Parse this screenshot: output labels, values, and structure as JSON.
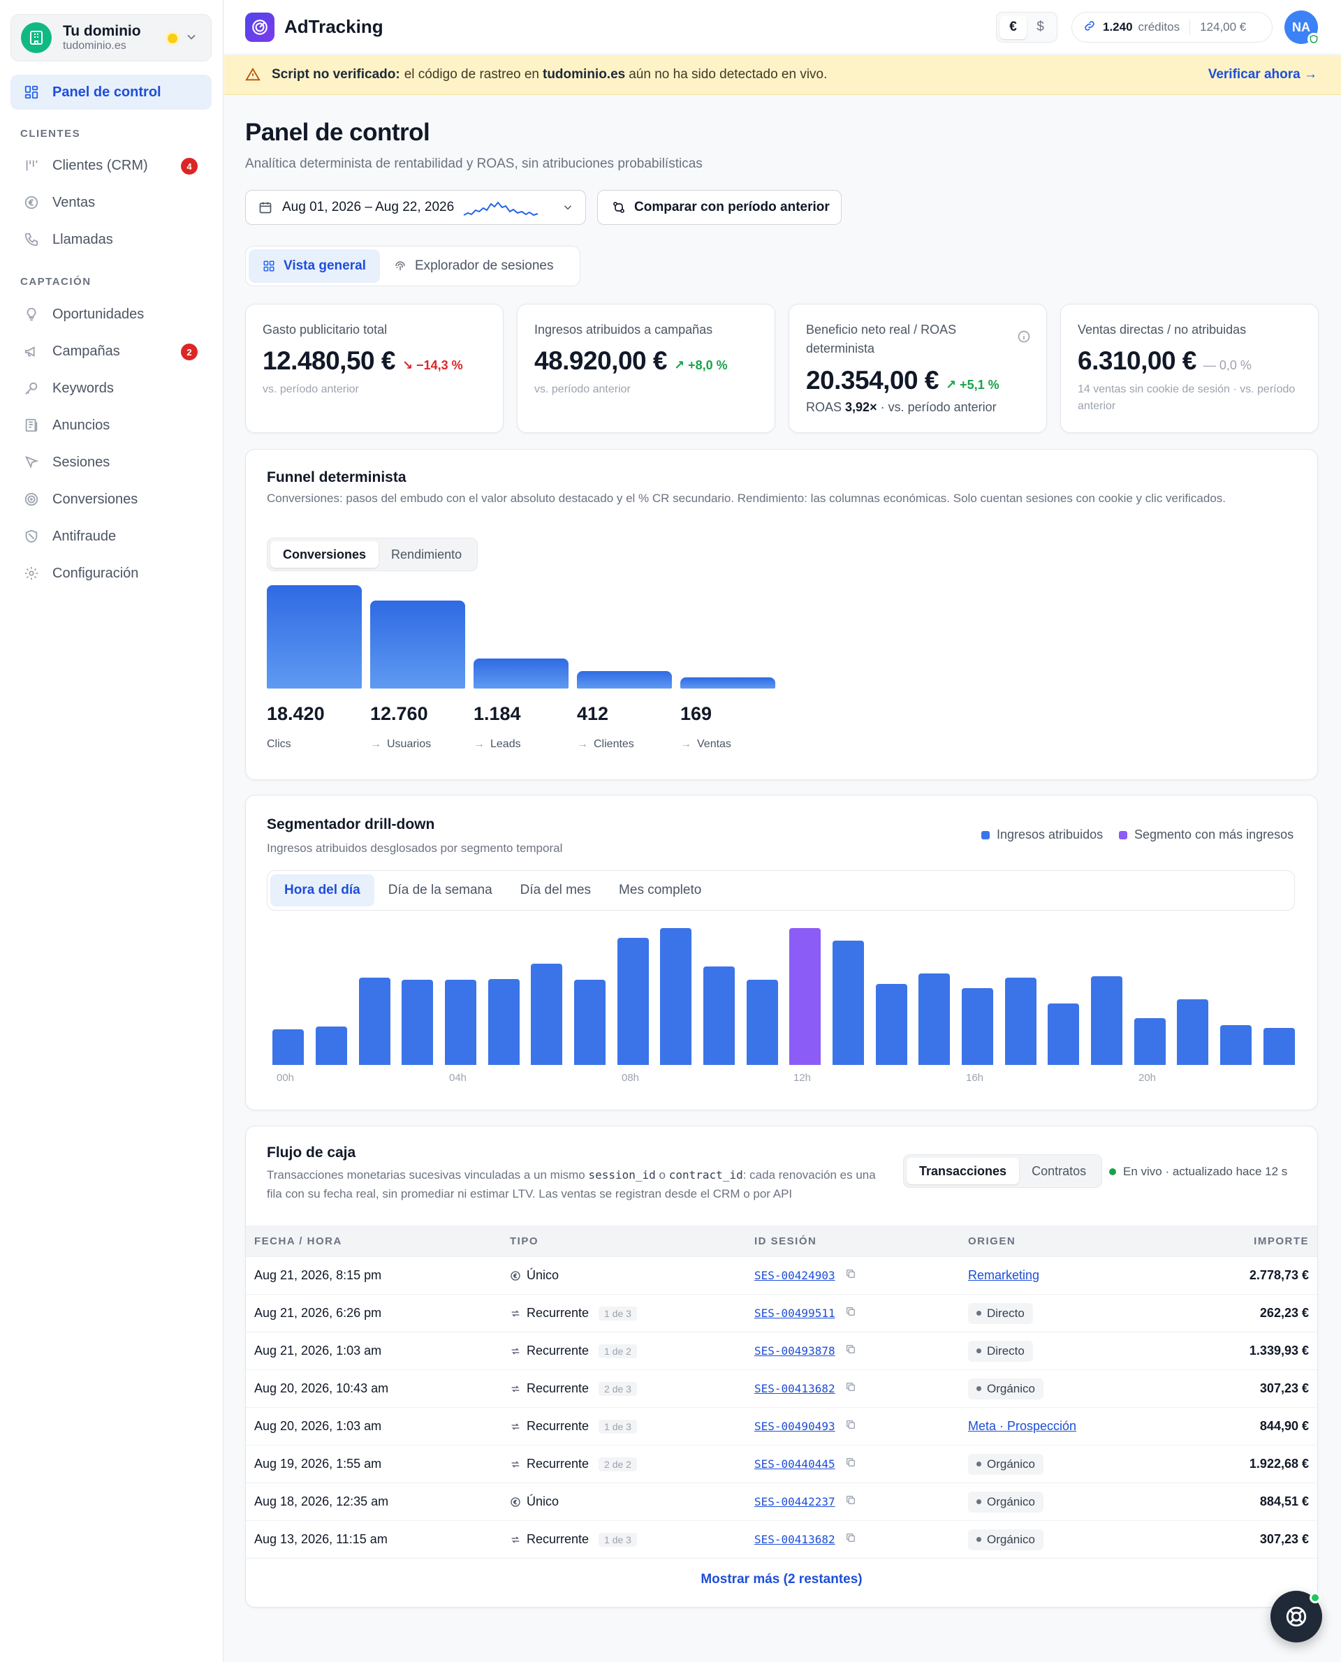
{
  "workspace": {
    "name": "Tu dominio",
    "domain": "tudominio.es"
  },
  "sidebar": {
    "items_top": [
      {
        "label": "Panel de control",
        "icon": "dashboard-icon"
      }
    ],
    "sections": [
      {
        "title": "CLIENTES",
        "items": [
          {
            "label": "Clientes (CRM)",
            "icon": "crm-icon",
            "badge": "4"
          },
          {
            "label": "Ventas",
            "icon": "euro-icon"
          },
          {
            "label": "Llamadas",
            "icon": "phone-icon"
          }
        ]
      },
      {
        "title": "CAPTACIÓN",
        "items": [
          {
            "label": "Oportunidades",
            "icon": "lightbulb-icon"
          },
          {
            "label": "Campañas",
            "icon": "megaphone-icon",
            "badge": "2"
          },
          {
            "label": "Keywords",
            "icon": "key-icon"
          },
          {
            "label": "Anuncios",
            "icon": "newspaper-icon"
          },
          {
            "label": "Sesiones",
            "icon": "cursor-icon"
          },
          {
            "label": "Conversiones",
            "icon": "target-icon"
          },
          {
            "label": "Antifraude",
            "icon": "shield-icon"
          },
          {
            "label": "Configuración",
            "icon": "gear-icon"
          }
        ]
      }
    ]
  },
  "topbar": {
    "brand": "AdTracking",
    "currency": {
      "options": [
        "€",
        "$"
      ],
      "selected": "€"
    },
    "credits": {
      "amount": "1.240",
      "label": "créditos",
      "value": "124,00 €"
    },
    "user_initials": "NA"
  },
  "banner": {
    "strong": "Script no verificado:",
    "text_before": "el código de rastreo en",
    "domain": "tudominio.es",
    "text_after": "aún no ha sido detectado en vivo.",
    "action": "Verificar ahora →"
  },
  "page": {
    "title": "Panel de control",
    "subtitle": "Analítica determinista de rentabilidad y ROAS, sin atribuciones probabilísticas",
    "date_range": "Aug 01, 2026 – Aug 22, 2026",
    "compare_label": "Comparar con período anterior",
    "view_tabs": [
      "Vista general",
      "Explorador de sesiones"
    ]
  },
  "kpis": [
    {
      "label": "Gasto publicitario total",
      "value": "12.480,50 €",
      "delta": "↘ −14,3 %",
      "trend": "down",
      "foot": "vs. período anterior"
    },
    {
      "label": "Ingresos atribuidos a campañas",
      "value": "48.920,00 €",
      "delta": "↗ +8,0 %",
      "trend": "up",
      "foot": "vs. período anterior"
    },
    {
      "label": "Beneficio neto real / ROAS determinista",
      "value": "20.354,00 €",
      "delta": "↗ +5,1 %",
      "trend": "up",
      "foot_prefix": "ROAS",
      "foot_strong": "3,92×",
      "foot": "· vs. período anterior"
    },
    {
      "label": "Ventas directas / no atribuidas",
      "value": "6.310,00 €",
      "delta": "— 0,0 %",
      "trend": "flat",
      "foot": "14 ventas sin cookie de sesión · vs. período anterior"
    }
  ],
  "funnel": {
    "title": "Funnel determinista",
    "subtitle": "Conversiones: pasos del embudo con el valor absoluto destacado y el % CR secundario. Rendimiento: las columnas económicas. Solo cuentan sesiones con cookie y clic verificados.",
    "tabs": [
      "Conversiones",
      "Rendimiento"
    ],
    "steps": [
      {
        "value": "18.420",
        "label": "Clics",
        "fraction": 1.0
      },
      {
        "value": "12.760",
        "label": "Usuarios",
        "fraction": 0.85
      },
      {
        "value": "1.184",
        "label": "Leads",
        "fraction": 0.29
      },
      {
        "value": "412",
        "label": "Clientes",
        "fraction": 0.17
      },
      {
        "value": "169",
        "label": "Ventas",
        "fraction": 0.11
      }
    ]
  },
  "segmenter": {
    "title": "Segmentador drill-down",
    "subtitle": "Ingresos atribuidos desglosados por segmento temporal",
    "legend": [
      {
        "label": "Ingresos atribuidos",
        "color": "#3b74e8"
      },
      {
        "label": "Segmento con más ingresos",
        "color": "#8b5cf6"
      }
    ],
    "tabs": [
      "Hora del día",
      "Día de la semana",
      "Día del mes",
      "Mes completo"
    ],
    "chart_data": {
      "type": "bar",
      "categories": [
        "00h",
        "01h",
        "02h",
        "03h",
        "04h",
        "05h",
        "06h",
        "07h",
        "08h",
        "09h",
        "10h",
        "11h",
        "12h",
        "13h",
        "14h",
        "15h",
        "16h",
        "17h",
        "18h",
        "19h",
        "20h",
        "21h",
        "22h",
        "23h"
      ],
      "tick_labels": [
        "00h",
        "04h",
        "08h",
        "12h",
        "16h",
        "20h"
      ],
      "values": [
        0.26,
        0.28,
        0.64,
        0.62,
        0.62,
        0.63,
        0.74,
        0.62,
        0.93,
        1.0,
        0.72,
        0.62,
        1.0,
        0.91,
        0.59,
        0.67,
        0.56,
        0.64,
        0.45,
        0.65,
        0.34,
        0.48,
        0.29,
        0.27
      ],
      "highlight_index": 12,
      "ylim": [
        0,
        1
      ]
    }
  },
  "cashflow": {
    "title": "Flujo de caja",
    "subtitle_1": "Transacciones monetarias sucesivas vinculadas a un mismo",
    "code_1": "session_id",
    "or": "o",
    "code_2": "contract_id",
    "subtitle_2": ": cada renovación",
    "subtitle_3": "es una fila con su fecha real, sin promediar ni estimar LTV. Las ventas se registran desde el CRM o por API",
    "tabs": [
      "Transacciones",
      "Contratos"
    ],
    "live": "En vivo · actualizado hace 12 s",
    "columns": [
      "FECHA / HORA",
      "TIPO",
      "ID SESIÓN",
      "ORIGEN",
      "IMPORTE"
    ],
    "rows": [
      {
        "date": "Aug 21, 2026, 8:15 pm",
        "tipo": "Único",
        "chip": "",
        "sid": "SES-00424903",
        "origen": "Remarketing",
        "origin_type": "link",
        "amount": "2.778,73 €"
      },
      {
        "date": "Aug 21, 2026, 6:26 pm",
        "tipo": "Recurrente",
        "chip": "1 de 3",
        "sid": "SES-00499511",
        "origen": "Directo",
        "origin_type": "pill",
        "amount": "262,23 €"
      },
      {
        "date": "Aug 21, 2026, 1:03 am",
        "tipo": "Recurrente",
        "chip": "1 de 2",
        "sid": "SES-00493878",
        "origen": "Directo",
        "origin_type": "pill",
        "amount": "1.339,93 €"
      },
      {
        "date": "Aug 20, 2026, 10:43 am",
        "tipo": "Recurrente",
        "chip": "2 de 3",
        "sid": "SES-00413682",
        "origen": "Orgánico",
        "origin_type": "pill",
        "amount": "307,23 €"
      },
      {
        "date": "Aug 20, 2026, 1:03 am",
        "tipo": "Recurrente",
        "chip": "1 de 3",
        "sid": "SES-00490493",
        "origen": "Meta · Prospección",
        "origin_type": "link",
        "amount": "844,90 €"
      },
      {
        "date": "Aug 19, 2026, 1:55 am",
        "tipo": "Recurrente",
        "chip": "2 de 2",
        "sid": "SES-00440445",
        "origen": "Orgánico",
        "origin_type": "pill",
        "amount": "1.922,68 €"
      },
      {
        "date": "Aug 18, 2026, 12:35 am",
        "tipo": "Único",
        "chip": "",
        "sid": "SES-00442237",
        "origen": "Orgánico",
        "origin_type": "pill",
        "amount": "884,51 €"
      },
      {
        "date": "Aug 13, 2026, 11:15 am",
        "tipo": "Recurrente",
        "chip": "1 de 3",
        "sid": "SES-00413682",
        "origen": "Orgánico",
        "origin_type": "pill",
        "amount": "307,23 €"
      }
    ],
    "show_more": "Mostrar más (2 restantes)"
  },
  "colors": {
    "accent": "#2563eb",
    "danger": "#dc2626",
    "success": "#16a34a",
    "highlight": "#8b5cf6",
    "banner": "#fdf3c7"
  }
}
